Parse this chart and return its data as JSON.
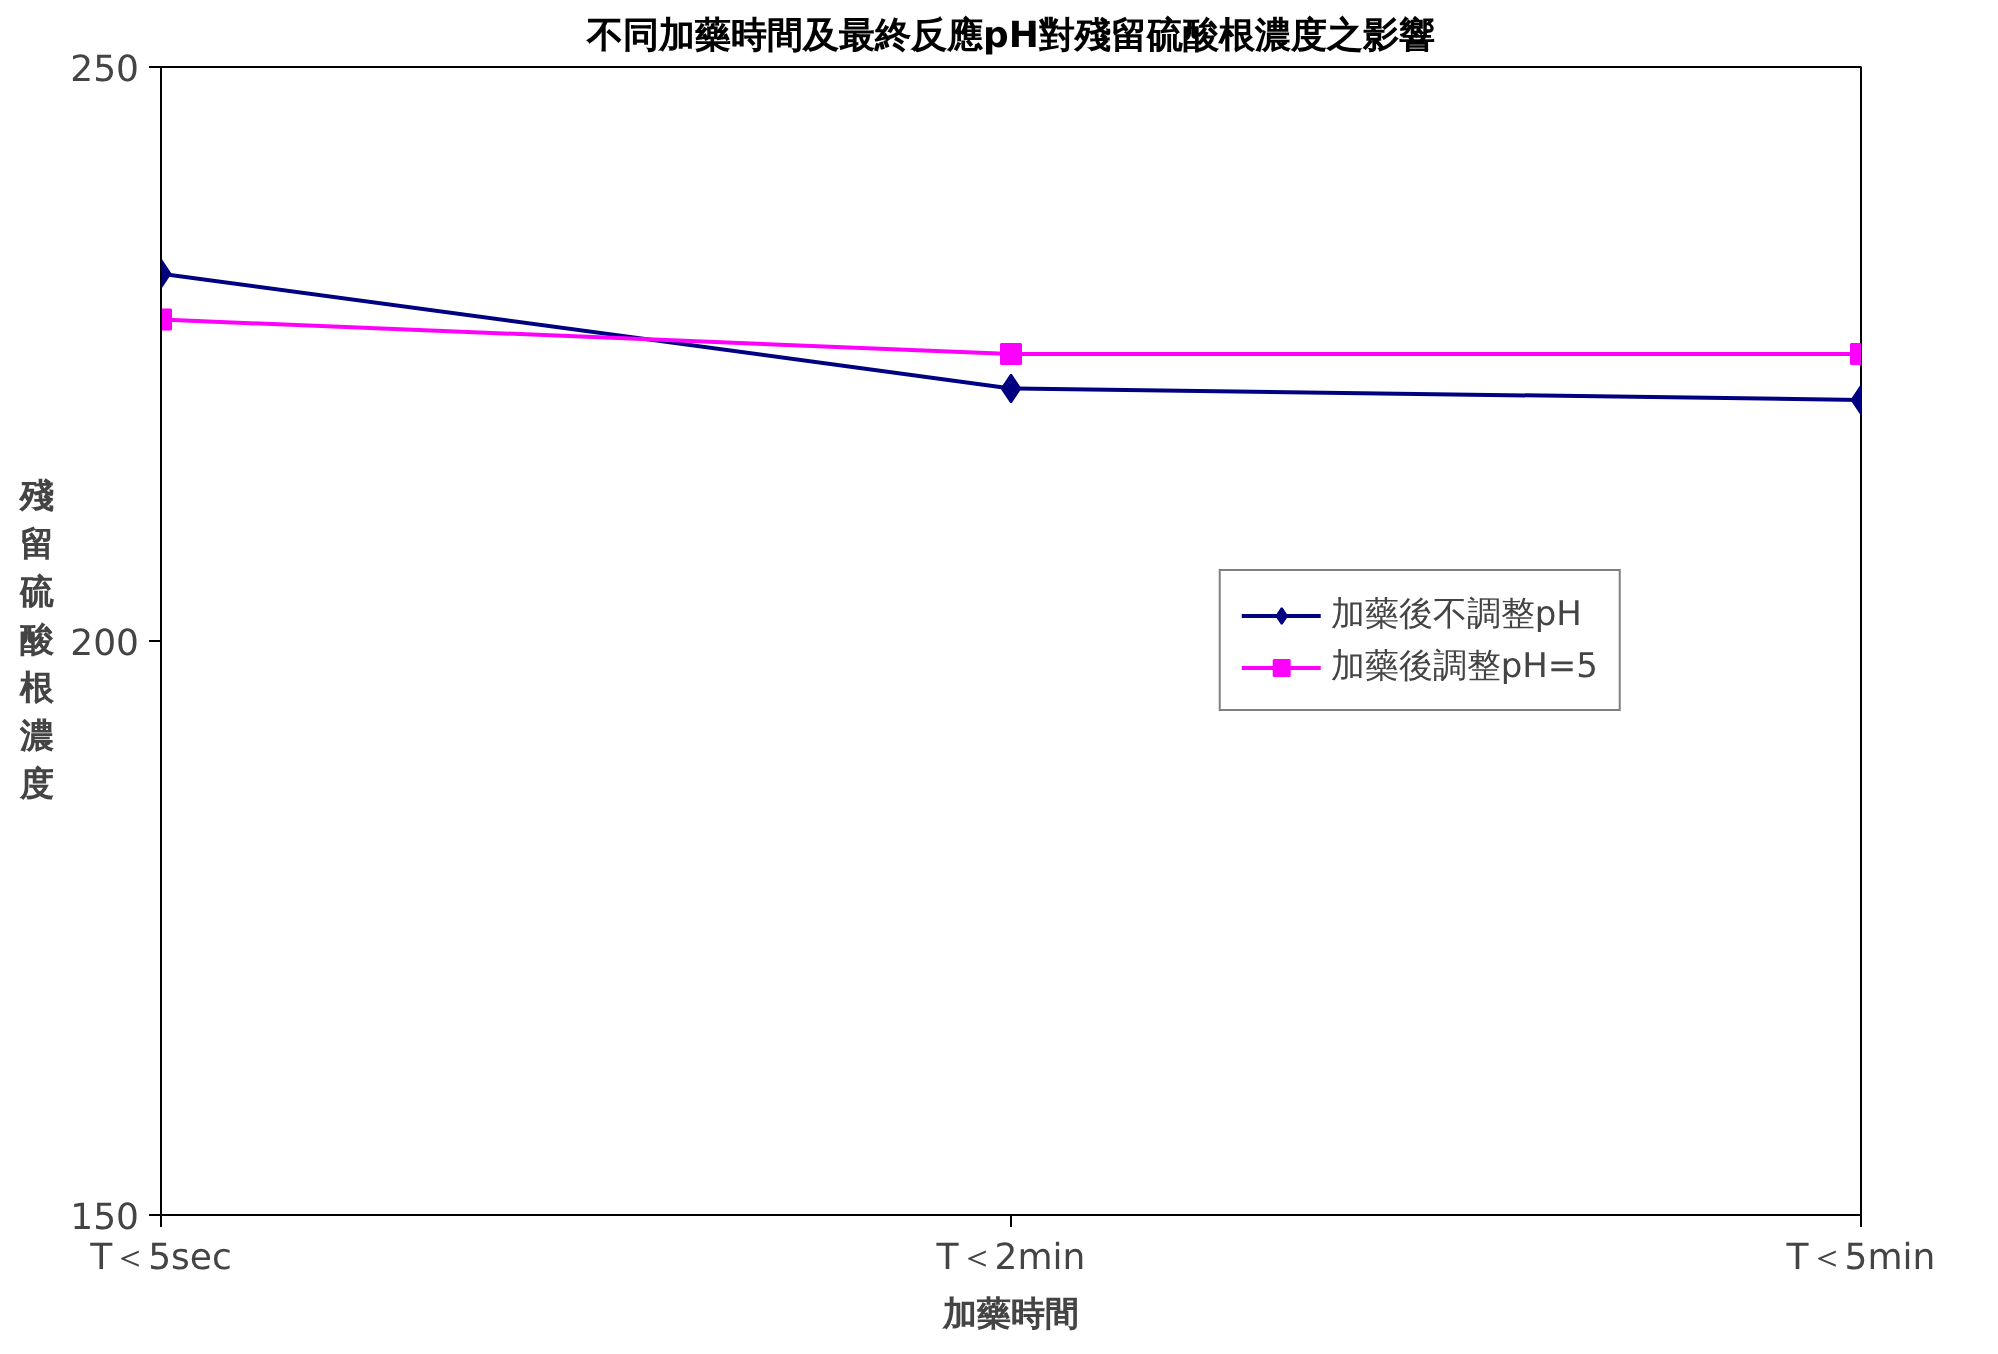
{
  "chart_data": {
    "type": "line",
    "title": "不同加藥時間及最終反應pH對殘留硫酸根濃度之影響",
    "xlabel": "加藥時間",
    "ylabel": "殘留硫酸根濃度",
    "categories": [
      "T＜5sec",
      "T＜2min",
      "T＜5min"
    ],
    "series": [
      {
        "name": "加藥後不調整pH",
        "color": "#000080",
        "values": [
          232,
          222,
          221
        ],
        "marker": "diamond"
      },
      {
        "name": "加藥後調整pH=5",
        "color": "#ff00ff",
        "values": [
          228,
          225,
          225
        ],
        "marker": "square"
      }
    ],
    "ylim": [
      150,
      250
    ],
    "yticks": [
      150,
      200,
      250
    ],
    "grid": false,
    "legend": "right",
    "line_style": "solid"
  }
}
